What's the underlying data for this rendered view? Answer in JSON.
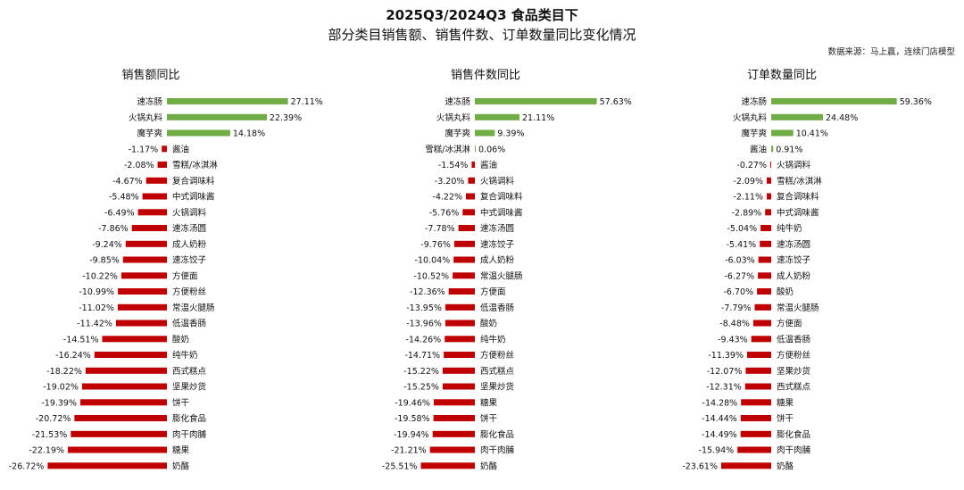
{
  "header": {
    "title": "2025Q3/2024Q3 食品类目下",
    "subtitle": "部分类目销售额、销售件数、订单数量同比变化情况",
    "source": "数据来源：马上赢，连续门店模型"
  },
  "colors": {
    "positive": "#70ad47",
    "negative": "#c00000"
  },
  "chart_data": [
    {
      "type": "bar",
      "orientation": "horizontal",
      "title": "销售额同比",
      "unit": "%",
      "categories": [
        "速冻肠",
        "火锅丸料",
        "魔芋爽",
        "酱油",
        "雪糕/冰淇淋",
        "复合调味料",
        "中式调味酱",
        "火锅调料",
        "速冻汤圆",
        "成人奶粉",
        "速冻饺子",
        "方便面",
        "方便粉丝",
        "常温火腿肠",
        "低温香肠",
        "酸奶",
        "纯牛奶",
        "西式糕点",
        "坚果炒货",
        "饼干",
        "膨化食品",
        "肉干肉脯",
        "糖果",
        "奶酪"
      ],
      "values": [
        27.11,
        22.39,
        14.18,
        -1.17,
        -2.08,
        -4.67,
        -5.48,
        -6.49,
        -7.86,
        -9.24,
        -9.85,
        -10.22,
        -10.99,
        -11.02,
        -11.42,
        -14.51,
        -16.24,
        -18.22,
        -19.02,
        -19.39,
        -20.72,
        -21.53,
        -22.19,
        -26.72
      ],
      "labels": [
        "27.11%",
        "22.39%",
        "14.18%",
        "-1.17%",
        "-2.08%",
        "-4.67%",
        "-5.48%",
        "-6.49%",
        "-7.86%",
        "-9.24%",
        "-9.85%",
        "-10.22%",
        "-10.99%",
        "-11.02%",
        "-11.42%",
        "-14.51%",
        "-16.24%",
        "-18.22%",
        "-19.02%",
        "-19.39%",
        "-20.72%",
        "-21.53%",
        "-22.19%",
        "-26.72%"
      ]
    },
    {
      "type": "bar",
      "orientation": "horizontal",
      "title": "销售件数同比",
      "unit": "%",
      "categories": [
        "速冻肠",
        "火锅丸料",
        "魔芋爽",
        "雪糕/冰淇淋",
        "酱油",
        "火锅调料",
        "复合调味料",
        "中式调味酱",
        "速冻汤圆",
        "速冻饺子",
        "成人奶粉",
        "常温火腿肠",
        "方便面",
        "低温香肠",
        "酸奶",
        "纯牛奶",
        "方便粉丝",
        "西式糕点",
        "坚果炒货",
        "糖果",
        "饼干",
        "膨化食品",
        "肉干肉脯",
        "奶酪"
      ],
      "values": [
        57.63,
        21.11,
        9.39,
        0.06,
        -1.54,
        -3.2,
        -4.22,
        -5.76,
        -7.78,
        -9.76,
        -10.04,
        -10.52,
        -12.36,
        -13.95,
        -13.96,
        -14.26,
        -14.71,
        -15.22,
        -15.25,
        -19.46,
        -19.58,
        -19.94,
        -21.21,
        -25.51
      ],
      "labels": [
        "57.63%",
        "21.11%",
        "9.39%",
        "0.06%",
        "-1.54%",
        "-3.20%",
        "-4.22%",
        "-5.76%",
        "-7.78%",
        "-9.76%",
        "-10.04%",
        "-10.52%",
        "-12.36%",
        "-13.95%",
        "-13.96%",
        "-14.26%",
        "-14.71%",
        "-15.22%",
        "-15.25%",
        "-19.46%",
        "-19.58%",
        "-19.94%",
        "-21.21%",
        "-25.51%"
      ]
    },
    {
      "type": "bar",
      "orientation": "horizontal",
      "title": "订单数量同比",
      "unit": "%",
      "categories": [
        "速冻肠",
        "火锅丸料",
        "魔芋爽",
        "酱油",
        "火锅调料",
        "雪糕/冰淇淋",
        "复合调味料",
        "中式调味酱",
        "纯牛奶",
        "速冻汤圆",
        "速冻饺子",
        "成人奶粉",
        "酸奶",
        "常温火腿肠",
        "方便面",
        "低温香肠",
        "方便粉丝",
        "坚果炒货",
        "西式糕点",
        "糖果",
        "饼干",
        "膨化食品",
        "肉干肉脯",
        "奶酪"
      ],
      "values": [
        59.36,
        24.48,
        10.41,
        0.91,
        -0.27,
        -2.09,
        -2.11,
        -2.89,
        -5.04,
        -5.41,
        -6.03,
        -6.27,
        -6.7,
        -7.79,
        -8.48,
        -9.43,
        -11.39,
        -12.07,
        -12.31,
        -14.28,
        -14.44,
        -14.49,
        -15.94,
        -23.61
      ],
      "labels": [
        "59.36%",
        "24.48%",
        "10.41%",
        "0.91%",
        "-0.27%",
        "-2.09%",
        "-2.11%",
        "-2.89%",
        "-5.04%",
        "-5.41%",
        "-6.03%",
        "-6.27%",
        "-6.70%",
        "-7.79%",
        "-8.48%",
        "-9.43%",
        "-11.39%",
        "-12.07%",
        "-12.31%",
        "-14.28%",
        "-14.44%",
        "-14.49%",
        "-15.94%",
        "-23.61%"
      ]
    }
  ]
}
